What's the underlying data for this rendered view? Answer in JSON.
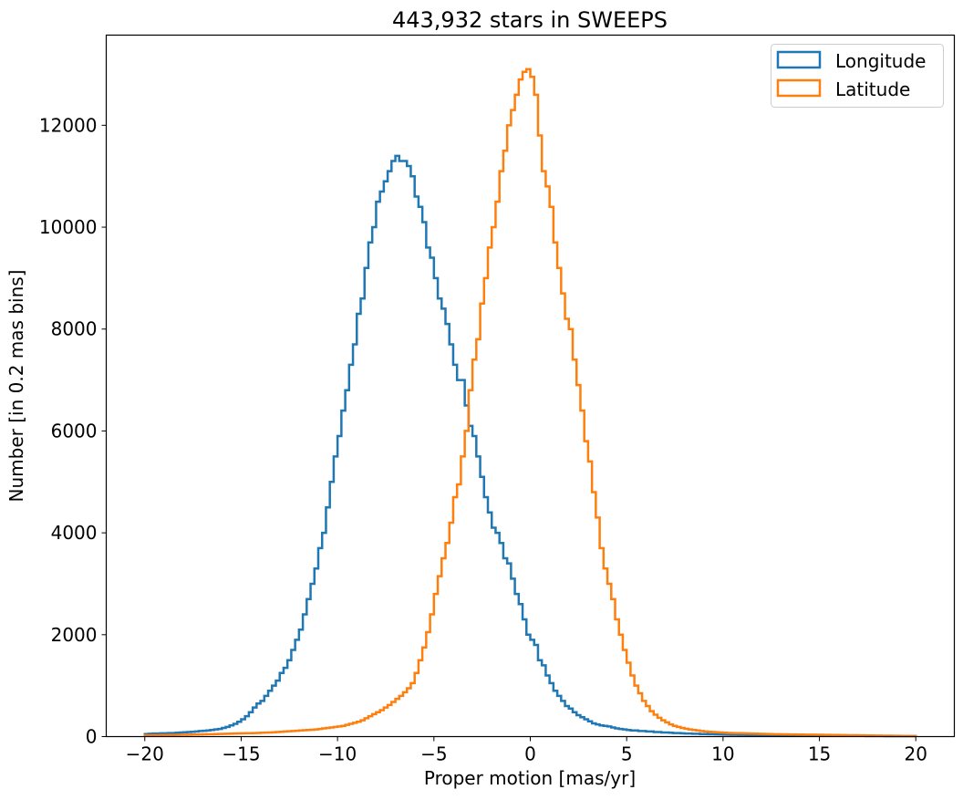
{
  "chart_data": {
    "type": "histogram-step",
    "title": "443,932 stars in SWEEPS",
    "xlabel": "Proper motion [mas/yr]",
    "ylabel": "Number [in 0.2 mas bins]",
    "xlim": [
      -22,
      22
    ],
    "ylim": [
      0,
      13770
    ],
    "xticks": [
      -20,
      -15,
      -10,
      -5,
      0,
      5,
      10,
      15,
      20
    ],
    "xtick_labels": [
      "−20",
      "−15",
      "−10",
      "−5",
      "0",
      "5",
      "10",
      "15",
      "20"
    ],
    "yticks": [
      0,
      2000,
      4000,
      6000,
      8000,
      10000,
      12000
    ],
    "ytick_labels": [
      "0",
      "2000",
      "4000",
      "6000",
      "8000",
      "10000",
      "12000"
    ],
    "grid": false,
    "legend_position": "top-right",
    "bin_range": [
      -20,
      20
    ],
    "bin_width": 0.2,
    "series": [
      {
        "name": "Longitude",
        "color": "#1f77b4",
        "values": [
          50,
          55,
          60,
          60,
          65,
          65,
          70,
          70,
          75,
          80,
          85,
          90,
          95,
          100,
          110,
          115,
          120,
          130,
          140,
          150,
          170,
          190,
          220,
          250,
          290,
          340,
          400,
          480,
          570,
          650,
          700,
          800,
          900,
          1000,
          1100,
          1250,
          1350,
          1500,
          1700,
          1900,
          2100,
          2400,
          2700,
          3000,
          3300,
          3700,
          4000,
          4500,
          5000,
          5500,
          5900,
          6400,
          6800,
          7300,
          7700,
          8300,
          8600,
          9200,
          9700,
          10000,
          10500,
          10700,
          10900,
          11100,
          11300,
          11400,
          11300,
          11300,
          11200,
          11000,
          10600,
          10400,
          10100,
          9600,
          9400,
          9000,
          8600,
          8400,
          8100,
          7700,
          7300,
          7000,
          7000,
          6500,
          6100,
          5900,
          5500,
          5100,
          4700,
          4400,
          4100,
          4000,
          3800,
          3500,
          3400,
          3100,
          2800,
          2600,
          2300,
          2000,
          1900,
          1800,
          1500,
          1400,
          1200,
          1050,
          900,
          800,
          700,
          600,
          550,
          480,
          420,
          380,
          340,
          300,
          260,
          240,
          220,
          210,
          200,
          180,
          160,
          150,
          140,
          130,
          120,
          120,
          110,
          110,
          100,
          100,
          90,
          90,
          80,
          80,
          75,
          70,
          70,
          65,
          60,
          60,
          55,
          55,
          50,
          50,
          48,
          46,
          44,
          42,
          40,
          38,
          36,
          35,
          34,
          33,
          32,
          31,
          30,
          30,
          29,
          28,
          27,
          26,
          25,
          25,
          24,
          23,
          22,
          22,
          21,
          20,
          20,
          19,
          19,
          18,
          18,
          17,
          17,
          16,
          16,
          15,
          15,
          14,
          14,
          13,
          13,
          12,
          12,
          12,
          11,
          11,
          10,
          10,
          10,
          9,
          9,
          9,
          8,
          8
        ]
      },
      {
        "name": "Latitude",
        "color": "#ff7f0e",
        "values": [
          25,
          25,
          28,
          28,
          30,
          30,
          32,
          32,
          34,
          35,
          36,
          38,
          40,
          40,
          42,
          44,
          46,
          48,
          50,
          52,
          54,
          56,
          58,
          60,
          62,
          64,
          66,
          68,
          70,
          72,
          75,
          78,
          80,
          85,
          90,
          95,
          100,
          105,
          110,
          115,
          120,
          125,
          130,
          135,
          140,
          150,
          160,
          170,
          180,
          190,
          200,
          210,
          230,
          250,
          270,
          290,
          320,
          360,
          400,
          440,
          480,
          520,
          570,
          620,
          680,
          740,
          800,
          870,
          950,
          1050,
          1250,
          1500,
          1750,
          2050,
          2400,
          2800,
          3150,
          3500,
          3800,
          4200,
          4700,
          4950,
          5500,
          6000,
          6800,
          7400,
          7800,
          8500,
          9000,
          9600,
          10000,
          10500,
          11100,
          11500,
          12000,
          12300,
          12600,
          12900,
          13050,
          13100,
          12950,
          12600,
          11800,
          11100,
          10800,
          10400,
          9700,
          9200,
          8700,
          8200,
          8000,
          7400,
          6900,
          6400,
          5800,
          5400,
          4800,
          4300,
          3700,
          3300,
          3000,
          2700,
          2300,
          2000,
          1700,
          1450,
          1200,
          1000,
          850,
          700,
          600,
          500,
          430,
          370,
          320,
          280,
          240,
          210,
          190,
          170,
          155,
          140,
          130,
          120,
          110,
          100,
          95,
          90,
          85,
          80,
          76,
          72,
          70,
          68,
          66,
          64,
          62,
          60,
          58,
          56,
          54,
          52,
          50,
          48,
          46,
          45,
          44,
          43,
          42,
          41,
          40,
          39,
          38,
          37,
          36,
          35,
          34,
          33,
          32,
          31,
          30,
          29,
          28,
          27,
          26,
          25,
          24,
          23,
          22,
          21,
          20,
          19,
          18,
          17,
          16,
          15,
          14,
          13,
          12,
          11
        ]
      }
    ]
  }
}
